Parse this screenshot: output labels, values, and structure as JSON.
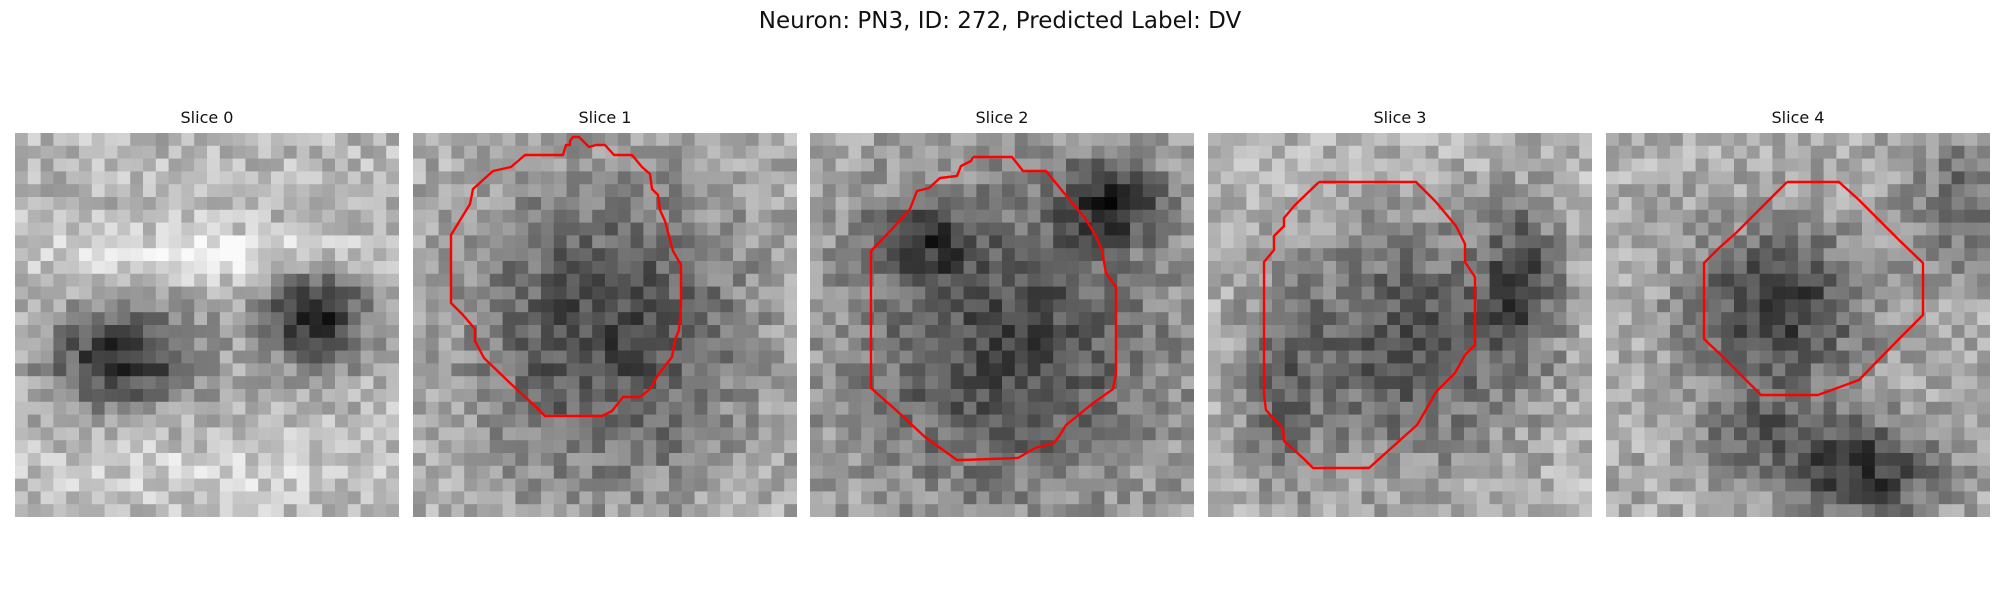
{
  "figure": {
    "title": "Neuron: PN3, ID: 272, Predicted Label: DV"
  },
  "panels": [
    {
      "title": "Slice 0",
      "has_contour": false
    },
    {
      "title": "Slice 1",
      "has_contour": true
    },
    {
      "title": "Slice 2",
      "has_contour": true
    },
    {
      "title": "Slice 3",
      "has_contour": true
    },
    {
      "title": "Slice 4",
      "has_contour": true
    }
  ],
  "colors": {
    "contour": "#ff0000",
    "background": "#ffffff",
    "colormap": "gray"
  }
}
